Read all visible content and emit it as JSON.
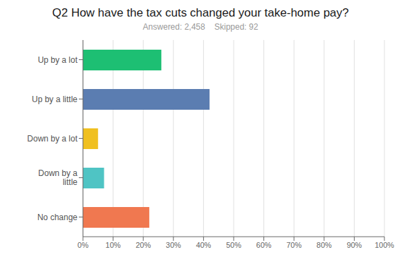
{
  "chart_data": {
    "type": "bar",
    "title": "Q2 How have the tax cuts changed your take-home pay?",
    "subtitle": "Answered: 2,458    Skipped: 92",
    "categories": [
      "Up by a lot",
      "Up by a little",
      "Down by a lot",
      "Down by a\nlittle",
      "No change"
    ],
    "values": [
      26,
      42,
      5,
      7,
      22
    ],
    "colors": [
      "#1dbf73",
      "#5b7db1",
      "#f0c020",
      "#4fc4c4",
      "#f07850"
    ],
    "orientation": "horizontal",
    "xlim": [
      0,
      100
    ],
    "xticks": [
      {
        "value": 0,
        "label": "0%"
      },
      {
        "value": 10,
        "label": "10%"
      },
      {
        "value": 20,
        "label": "20%"
      },
      {
        "value": 30,
        "label": "30%"
      },
      {
        "value": 40,
        "label": "40%"
      },
      {
        "value": 50,
        "label": "50%"
      },
      {
        "value": 60,
        "label": "60%"
      },
      {
        "value": 70,
        "label": "70%"
      },
      {
        "value": 80,
        "label": "80%"
      },
      {
        "value": 90,
        "label": "90%"
      },
      {
        "value": 100,
        "label": "100%"
      }
    ],
    "grid": true
  }
}
